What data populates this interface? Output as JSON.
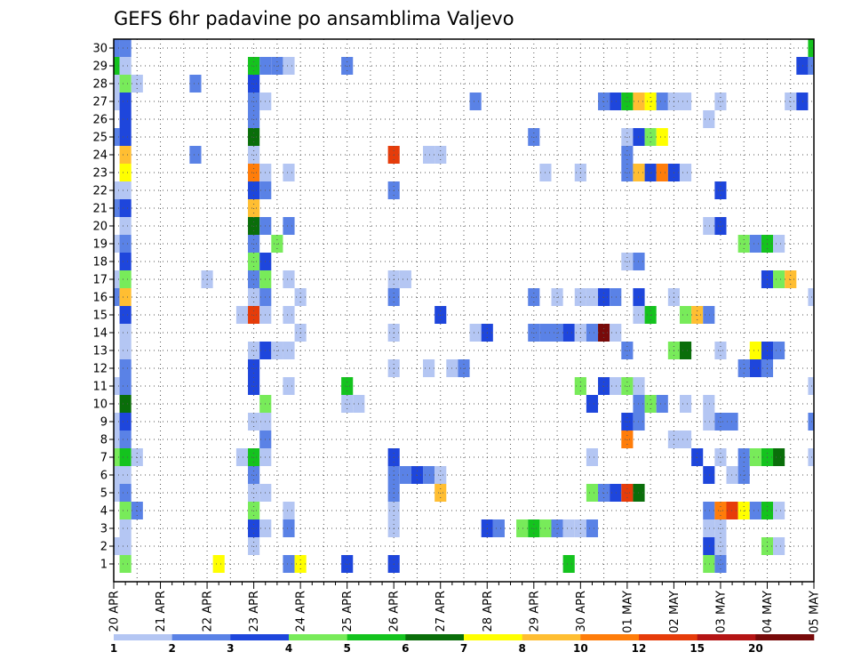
{
  "chart_data": {
    "type": "heatmap",
    "title": "GEFS 6hr padavine po ansamblima Valjevo",
    "xlabel": "",
    "ylabel": "",
    "y_ticks": [
      "1",
      "2",
      "3",
      "4",
      "5",
      "6",
      "7",
      "8",
      "9",
      "10",
      "11",
      "12",
      "13",
      "14",
      "15",
      "16",
      "17",
      "18",
      "19",
      "20",
      "21",
      "22",
      "23",
      "24",
      "25",
      "26",
      "27",
      "28",
      "29",
      "30"
    ],
    "x_ticks": [
      "20 APR",
      "21 APR",
      "22 APR",
      "23 APR",
      "24 APR",
      "25 APR",
      "26 APR",
      "27 APR",
      "28 APR",
      "29 APR",
      "30 APR",
      "01 MAY",
      "02 MAY",
      "03 MAY",
      "04 MAY",
      "05 MAY"
    ],
    "x_range": [
      "20 APR 00Z",
      "05 MAY 00Z"
    ],
    "y_range": [
      0,
      30
    ],
    "time_step_hours": 6,
    "grid": true,
    "colorbar": {
      "labels": [
        "1",
        "2",
        "3",
        "4",
        "5",
        "6",
        "7",
        "8",
        "10",
        "12",
        "15",
        "20"
      ],
      "colors": [
        "#b4c6f3",
        "#5a82e6",
        "#1e46dc",
        "#78eb5a",
        "#14c31e",
        "#0a6e0a",
        "#ffff00",
        "#ffbe32",
        "#ff7d0a",
        "#e63c0a",
        "#b41414",
        "#780a0a"
      ]
    },
    "cells": [
      [
        "20 APR 00Z",
        30,
        2
      ],
      [
        "20 APR 06Z",
        30,
        2
      ],
      [
        "05 MAY 00Z",
        30,
        5
      ],
      [
        "20 APR 00Z",
        29,
        5
      ],
      [
        "20 APR 06Z",
        29,
        1
      ],
      [
        "23 APR 00Z",
        29,
        5
      ],
      [
        "23 APR 06Z",
        29,
        2
      ],
      [
        "23 APR 12Z",
        29,
        2
      ],
      [
        "23 APR 18Z",
        29,
        1
      ],
      [
        "25 APR 00Z",
        29,
        2
      ],
      [
        "04 MAY 18Z",
        29,
        3
      ],
      [
        "05 MAY 00Z",
        29,
        2
      ],
      [
        "20 APR 00Z",
        28,
        1
      ],
      [
        "20 APR 06Z",
        28,
        4
      ],
      [
        "20 APR 12Z",
        28,
        1
      ],
      [
        "21 APR 18Z",
        28,
        2
      ],
      [
        "23 APR 00Z",
        28,
        3
      ],
      [
        "20 APR 00Z",
        27,
        1
      ],
      [
        "20 APR 06Z",
        27,
        3
      ],
      [
        "23 APR 00Z",
        27,
        2
      ],
      [
        "23 APR 06Z",
        27,
        1
      ],
      [
        "27 APR 18Z",
        27,
        2
      ],
      [
        "30 APR 12Z",
        27,
        2
      ],
      [
        "30 APR 18Z",
        27,
        3
      ],
      [
        "01 MAY 00Z",
        27,
        5
      ],
      [
        "01 MAY 06Z",
        27,
        8
      ],
      [
        "01 MAY 12Z",
        27,
        7
      ],
      [
        "01 MAY 18Z",
        27,
        2
      ],
      [
        "02 MAY 00Z",
        27,
        1
      ],
      [
        "02 MAY 06Z",
        27,
        1
      ],
      [
        "03 MAY 00Z",
        27,
        1
      ],
      [
        "04 MAY 12Z",
        27,
        1
      ],
      [
        "04 MAY 18Z",
        27,
        3
      ],
      [
        "20 APR 06Z",
        26,
        3
      ],
      [
        "23 APR 00Z",
        26,
        2
      ],
      [
        "02 MAY 18Z",
        26,
        1
      ],
      [
        "20 APR 00Z",
        25,
        2
      ],
      [
        "20 APR 06Z",
        25,
        3
      ],
      [
        "23 APR 00Z",
        25,
        6
      ],
      [
        "29 APR 00Z",
        25,
        2
      ],
      [
        "01 MAY 00Z",
        25,
        1
      ],
      [
        "01 MAY 06Z",
        25,
        3
      ],
      [
        "01 MAY 12Z",
        25,
        4
      ],
      [
        "01 MAY 18Z",
        25,
        7
      ],
      [
        "20 APR 06Z",
        24,
        8
      ],
      [
        "21 APR 18Z",
        24,
        2
      ],
      [
        "23 APR 00Z",
        24,
        1
      ],
      [
        "26 APR 00Z",
        24,
        12
      ],
      [
        "26 APR 18Z",
        24,
        1
      ],
      [
        "27 APR 00Z",
        24,
        1
      ],
      [
        "01 MAY 00Z",
        24,
        2
      ],
      [
        "20 APR 06Z",
        23,
        7
      ],
      [
        "23 APR 00Z",
        23,
        10
      ],
      [
        "23 APR 06Z",
        23,
        1
      ],
      [
        "23 APR 18Z",
        23,
        1
      ],
      [
        "29 APR 06Z",
        23,
        1
      ],
      [
        "30 APR 00Z",
        23,
        1
      ],
      [
        "01 MAY 00Z",
        23,
        2
      ],
      [
        "01 MAY 06Z",
        23,
        8
      ],
      [
        "01 MAY 12Z",
        23,
        3
      ],
      [
        "01 MAY 18Z",
        23,
        10
      ],
      [
        "02 MAY 00Z",
        23,
        3
      ],
      [
        "02 MAY 06Z",
        23,
        1
      ],
      [
        "20 APR 00Z",
        22,
        1
      ],
      [
        "20 APR 06Z",
        22,
        1
      ],
      [
        "23 APR 00Z",
        22,
        3
      ],
      [
        "23 APR 06Z",
        22,
        2
      ],
      [
        "26 APR 00Z",
        22,
        2
      ],
      [
        "03 MAY 00Z",
        22,
        3
      ],
      [
        "20 APR 00Z",
        21,
        2
      ],
      [
        "20 APR 06Z",
        21,
        3
      ],
      [
        "23 APR 00Z",
        21,
        8
      ],
      [
        "20 APR 06Z",
        20,
        1
      ],
      [
        "23 APR 00Z",
        20,
        6
      ],
      [
        "23 APR 06Z",
        20,
        2
      ],
      [
        "23 APR 18Z",
        20,
        2
      ],
      [
        "02 MAY 18Z",
        20,
        1
      ],
      [
        "03 MAY 00Z",
        20,
        3
      ],
      [
        "20 APR 00Z",
        19,
        1
      ],
      [
        "20 APR 06Z",
        19,
        2
      ],
      [
        "23 APR 00Z",
        19,
        2
      ],
      [
        "23 APR 12Z",
        19,
        4
      ],
      [
        "03 MAY 12Z",
        19,
        4
      ],
      [
        "03 MAY 18Z",
        19,
        2
      ],
      [
        "04 MAY 00Z",
        19,
        5
      ],
      [
        "04 MAY 06Z",
        19,
        1
      ],
      [
        "20 APR 06Z",
        18,
        3
      ],
      [
        "23 APR 00Z",
        18,
        4
      ],
      [
        "23 APR 06Z",
        18,
        3
      ],
      [
        "01 MAY 00Z",
        18,
        1
      ],
      [
        "01 MAY 06Z",
        18,
        2
      ],
      [
        "20 APR 00Z",
        17,
        1
      ],
      [
        "20 APR 06Z",
        17,
        4
      ],
      [
        "22 APR 00Z",
        17,
        1
      ],
      [
        "23 APR 00Z",
        17,
        2
      ],
      [
        "23 APR 06Z",
        17,
        4
      ],
      [
        "23 APR 18Z",
        17,
        1
      ],
      [
        "26 APR 00Z",
        17,
        1
      ],
      [
        "26 APR 06Z",
        17,
        1
      ],
      [
        "04 MAY 00Z",
        17,
        3
      ],
      [
        "04 MAY 06Z",
        17,
        4
      ],
      [
        "04 MAY 12Z",
        17,
        8
      ],
      [
        "20 APR 00Z",
        16,
        2
      ],
      [
        "20 APR 06Z",
        16,
        8
      ],
      [
        "23 APR 00Z",
        16,
        1
      ],
      [
        "23 APR 06Z",
        16,
        2
      ],
      [
        "24 APR 00Z",
        16,
        1
      ],
      [
        "26 APR 00Z",
        16,
        2
      ],
      [
        "29 APR 00Z",
        16,
        2
      ],
      [
        "29 APR 12Z",
        16,
        1
      ],
      [
        "30 APR 00Z",
        16,
        1
      ],
      [
        "30 APR 06Z",
        16,
        1
      ],
      [
        "30 APR 12Z",
        16,
        3
      ],
      [
        "30 APR 18Z",
        16,
        2
      ],
      [
        "01 MAY 06Z",
        16,
        3
      ],
      [
        "02 MAY 00Z",
        16,
        1
      ],
      [
        "05 MAY 00Z",
        16,
        1
      ],
      [
        "20 APR 06Z",
        15,
        3
      ],
      [
        "22 APR 18Z",
        15,
        1
      ],
      [
        "23 APR 00Z",
        15,
        12
      ],
      [
        "23 APR 06Z",
        15,
        1
      ],
      [
        "23 APR 18Z",
        15,
        1
      ],
      [
        "27 APR 00Z",
        15,
        3
      ],
      [
        "01 MAY 06Z",
        15,
        1
      ],
      [
        "01 MAY 12Z",
        15,
        5
      ],
      [
        "02 MAY 06Z",
        15,
        4
      ],
      [
        "02 MAY 12Z",
        15,
        8
      ],
      [
        "02 MAY 18Z",
        15,
        2
      ],
      [
        "20 APR 06Z",
        14,
        1
      ],
      [
        "24 APR 00Z",
        14,
        1
      ],
      [
        "26 APR 00Z",
        14,
        1
      ],
      [
        "27 APR 18Z",
        14,
        1
      ],
      [
        "28 APR 00Z",
        14,
        3
      ],
      [
        "29 APR 00Z",
        14,
        2
      ],
      [
        "29 APR 06Z",
        14,
        2
      ],
      [
        "29 APR 12Z",
        14,
        2
      ],
      [
        "29 APR 18Z",
        14,
        3
      ],
      [
        "30 APR 00Z",
        14,
        1
      ],
      [
        "30 APR 06Z",
        14,
        2
      ],
      [
        "30 APR 12Z",
        14,
        20
      ],
      [
        "30 APR 18Z",
        14,
        1
      ],
      [
        "20 APR 06Z",
        13,
        1
      ],
      [
        "23 APR 00Z",
        13,
        1
      ],
      [
        "23 APR 06Z",
        13,
        3
      ],
      [
        "23 APR 12Z",
        13,
        1
      ],
      [
        "23 APR 18Z",
        13,
        1
      ],
      [
        "01 MAY 00Z",
        13,
        2
      ],
      [
        "02 MAY 00Z",
        13,
        4
      ],
      [
        "02 MAY 06Z",
        13,
        6
      ],
      [
        "03 MAY 00Z",
        13,
        1
      ],
      [
        "03 MAY 18Z",
        13,
        7
      ],
      [
        "04 MAY 00Z",
        13,
        3
      ],
      [
        "04 MAY 06Z",
        13,
        2
      ],
      [
        "20 APR 06Z",
        12,
        2
      ],
      [
        "23 APR 00Z",
        12,
        3
      ],
      [
        "26 APR 00Z",
        12,
        1
      ],
      [
        "26 APR 18Z",
        12,
        1
      ],
      [
        "27 APR 06Z",
        12,
        1
      ],
      [
        "27 APR 12Z",
        12,
        2
      ],
      [
        "03 MAY 12Z",
        12,
        2
      ],
      [
        "03 MAY 18Z",
        12,
        3
      ],
      [
        "04 MAY 00Z",
        12,
        2
      ],
      [
        "20 APR 00Z",
        11,
        1
      ],
      [
        "20 APR 06Z",
        11,
        2
      ],
      [
        "23 APR 00Z",
        11,
        3
      ],
      [
        "23 APR 18Z",
        11,
        1
      ],
      [
        "25 APR 00Z",
        11,
        5
      ],
      [
        "30 APR 00Z",
        11,
        4
      ],
      [
        "30 APR 12Z",
        11,
        3
      ],
      [
        "30 APR 18Z",
        11,
        1
      ],
      [
        "01 MAY 00Z",
        11,
        4
      ],
      [
        "01 MAY 06Z",
        11,
        1
      ],
      [
        "05 MAY 00Z",
        11,
        1
      ],
      [
        "20 APR 06Z",
        10,
        6
      ],
      [
        "23 APR 06Z",
        10,
        4
      ],
      [
        "25 APR 00Z",
        10,
        1
      ],
      [
        "25 APR 06Z",
        10,
        1
      ],
      [
        "30 APR 06Z",
        10,
        3
      ],
      [
        "01 MAY 06Z",
        10,
        2
      ],
      [
        "01 MAY 12Z",
        10,
        4
      ],
      [
        "01 MAY 18Z",
        10,
        2
      ],
      [
        "02 MAY 06Z",
        10,
        1
      ],
      [
        "02 MAY 18Z",
        10,
        1
      ],
      [
        "20 APR 00Z",
        9,
        1
      ],
      [
        "20 APR 06Z",
        9,
        3
      ],
      [
        "23 APR 00Z",
        9,
        1
      ],
      [
        "23 APR 06Z",
        9,
        1
      ],
      [
        "01 MAY 00Z",
        9,
        3
      ],
      [
        "01 MAY 06Z",
        9,
        2
      ],
      [
        "02 MAY 18Z",
        9,
        1
      ],
      [
        "03 MAY 00Z",
        9,
        2
      ],
      [
        "03 MAY 06Z",
        9,
        2
      ],
      [
        "05 MAY 00Z",
        9,
        2
      ],
      [
        "20 APR 00Z",
        8,
        1
      ],
      [
        "20 APR 06Z",
        8,
        2
      ],
      [
        "23 APR 06Z",
        8,
        2
      ],
      [
        "01 MAY 00Z",
        8,
        10
      ],
      [
        "02 MAY 00Z",
        8,
        1
      ],
      [
        "02 MAY 06Z",
        8,
        1
      ],
      [
        "20 APR 00Z",
        7,
        4
      ],
      [
        "20 APR 06Z",
        7,
        5
      ],
      [
        "20 APR 12Z",
        7,
        1
      ],
      [
        "22 APR 18Z",
        7,
        1
      ],
      [
        "23 APR 00Z",
        7,
        5
      ],
      [
        "23 APR 06Z",
        7,
        1
      ],
      [
        "26 APR 00Z",
        7,
        3
      ],
      [
        "30 APR 06Z",
        7,
        1
      ],
      [
        "02 MAY 12Z",
        7,
        3
      ],
      [
        "03 MAY 00Z",
        7,
        1
      ],
      [
        "03 MAY 12Z",
        7,
        2
      ],
      [
        "03 MAY 18Z",
        7,
        4
      ],
      [
        "04 MAY 00Z",
        7,
        5
      ],
      [
        "04 MAY 06Z",
        7,
        6
      ],
      [
        "05 MAY 00Z",
        7,
        1
      ],
      [
        "20 APR 00Z",
        6,
        1
      ],
      [
        "20 APR 06Z",
        6,
        1
      ],
      [
        "23 APR 00Z",
        6,
        2
      ],
      [
        "26 APR 00Z",
        6,
        2
      ],
      [
        "26 APR 06Z",
        6,
        2
      ],
      [
        "26 APR 12Z",
        6,
        3
      ],
      [
        "26 APR 18Z",
        6,
        2
      ],
      [
        "27 APR 00Z",
        6,
        1
      ],
      [
        "02 MAY 18Z",
        6,
        3
      ],
      [
        "03 MAY 06Z",
        6,
        1
      ],
      [
        "03 MAY 12Z",
        6,
        2
      ],
      [
        "20 APR 00Z",
        5,
        1
      ],
      [
        "20 APR 06Z",
        5,
        2
      ],
      [
        "23 APR 00Z",
        5,
        1
      ],
      [
        "23 APR 06Z",
        5,
        1
      ],
      [
        "26 APR 00Z",
        5,
        2
      ],
      [
        "27 APR 00Z",
        5,
        8
      ],
      [
        "30 APR 06Z",
        5,
        4
      ],
      [
        "30 APR 12Z",
        5,
        2
      ],
      [
        "30 APR 18Z",
        5,
        3
      ],
      [
        "01 MAY 00Z",
        5,
        12
      ],
      [
        "01 MAY 06Z",
        5,
        6
      ],
      [
        "20 APR 06Z",
        4,
        4
      ],
      [
        "20 APR 12Z",
        4,
        2
      ],
      [
        "23 APR 00Z",
        4,
        4
      ],
      [
        "23 APR 18Z",
        4,
        1
      ],
      [
        "26 APR 00Z",
        4,
        1
      ],
      [
        "02 MAY 18Z",
        4,
        2
      ],
      [
        "03 MAY 00Z",
        4,
        10
      ],
      [
        "03 MAY 06Z",
        4,
        12
      ],
      [
        "03 MAY 12Z",
        4,
        7
      ],
      [
        "03 MAY 18Z",
        4,
        2
      ],
      [
        "04 MAY 00Z",
        4,
        5
      ],
      [
        "04 MAY 06Z",
        4,
        1
      ],
      [
        "20 APR 06Z",
        3,
        1
      ],
      [
        "23 APR 00Z",
        3,
        3
      ],
      [
        "23 APR 06Z",
        3,
        1
      ],
      [
        "23 APR 18Z",
        3,
        2
      ],
      [
        "26 APR 00Z",
        3,
        1
      ],
      [
        "28 APR 00Z",
        3,
        3
      ],
      [
        "28 APR 06Z",
        3,
        2
      ],
      [
        "28 APR 18Z",
        3,
        4
      ],
      [
        "29 APR 00Z",
        3,
        5
      ],
      [
        "29 APR 06Z",
        3,
        4
      ],
      [
        "29 APR 12Z",
        3,
        2
      ],
      [
        "29 APR 18Z",
        3,
        1
      ],
      [
        "30 APR 00Z",
        3,
        1
      ],
      [
        "30 APR 06Z",
        3,
        2
      ],
      [
        "02 MAY 18Z",
        3,
        1
      ],
      [
        "03 MAY 00Z",
        3,
        1
      ],
      [
        "20 APR 00Z",
        2,
        1
      ],
      [
        "20 APR 06Z",
        2,
        1
      ],
      [
        "23 APR 00Z",
        2,
        1
      ],
      [
        "02 MAY 18Z",
        2,
        3
      ],
      [
        "03 MAY 00Z",
        2,
        1
      ],
      [
        "04 MAY 00Z",
        2,
        4
      ],
      [
        "04 MAY 06Z",
        2,
        1
      ],
      [
        "20 APR 06Z",
        1,
        4
      ],
      [
        "22 APR 06Z",
        1,
        7
      ],
      [
        "23 APR 18Z",
        1,
        2
      ],
      [
        "24 APR 00Z",
        1,
        7
      ],
      [
        "25 APR 00Z",
        1,
        3
      ],
      [
        "26 APR 00Z",
        1,
        3
      ],
      [
        "29 APR 18Z",
        1,
        5
      ],
      [
        "02 MAY 18Z",
        1,
        4
      ],
      [
        "03 MAY 00Z",
        1,
        2
      ]
    ]
  }
}
